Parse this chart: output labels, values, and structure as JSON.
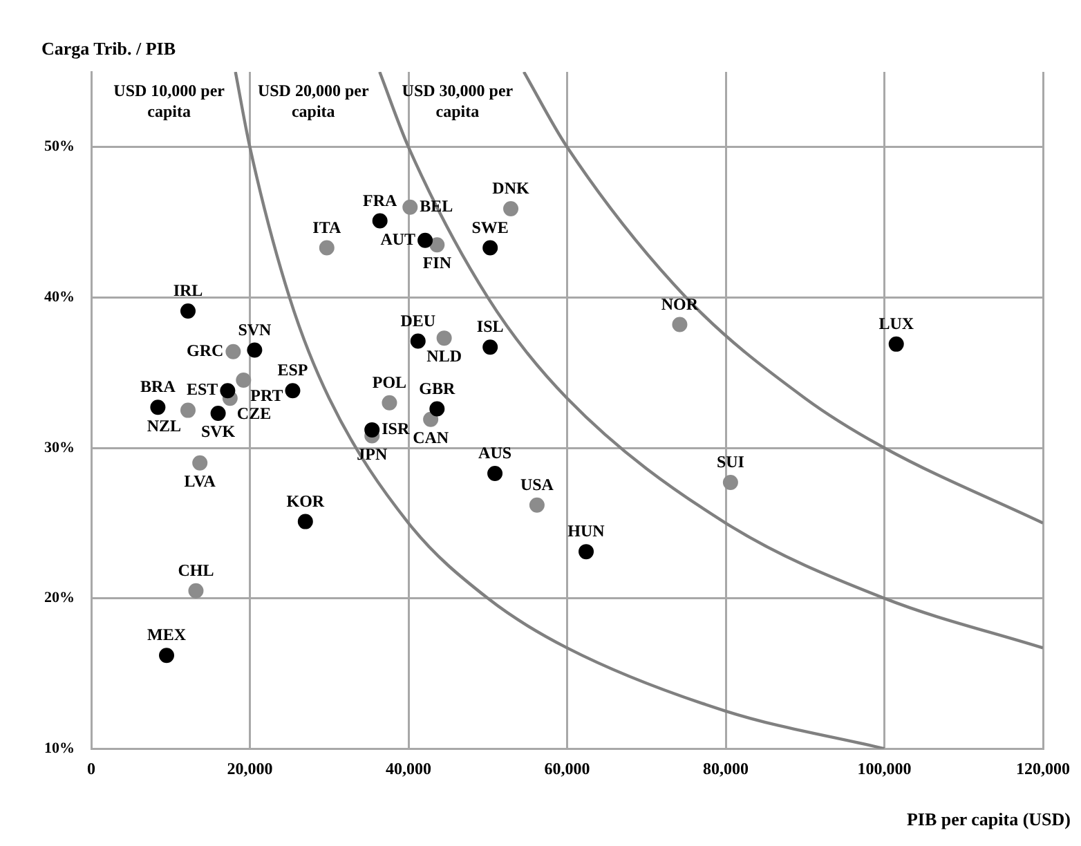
{
  "chart_data": {
    "type": "scatter",
    "ylabel": "Carga Trib. / PIB",
    "xlabel": "PIB per capita (USD)",
    "xlim": [
      0,
      120000
    ],
    "ylim": [
      10,
      55
    ],
    "xticks": [
      0,
      {
        "value": 20000,
        "label": "20,000"
      },
      {
        "value": 40000,
        "label": "40,000"
      },
      {
        "value": 60000,
        "label": "60,000"
      },
      {
        "value": 80000,
        "label": "80,000"
      },
      {
        "value": 100000,
        "label": "100,000"
      },
      {
        "value": 120000,
        "label": "120,000"
      }
    ],
    "yticks": [
      {
        "value": 10,
        "label": "10%"
      },
      {
        "value": 20,
        "label": "20%"
      },
      {
        "value": 30,
        "label": "30%"
      },
      {
        "value": 40,
        "label": "40%"
      },
      {
        "value": 50,
        "label": "50%"
      }
    ],
    "grid": true,
    "legend": false,
    "marker": "circle",
    "series": [
      {
        "color": "#000000",
        "x": [
          36400,
          42100,
          50300,
          12200,
          20600,
          41200,
          50300,
          25400,
          17200,
          8400,
          16000,
          43600,
          35400,
          27000,
          50900,
          62400,
          9500,
          101500
        ],
        "values": [
          45.1,
          43.8,
          43.3,
          39.1,
          36.5,
          37.1,
          36.7,
          33.8,
          33.8,
          32.7,
          32.3,
          32.6,
          31.2,
          25.1,
          28.3,
          23.1,
          16.2,
          36.9
        ],
        "value_labels": [
          "FRA",
          "AUT",
          "SWE",
          "IRL",
          "SVN",
          "DEU",
          "ISL",
          "ESP",
          "EST",
          "BRA",
          "SVK",
          "GBR",
          "ISR",
          "KOR",
          "AUS",
          "HUN",
          "MEX",
          "LUX"
        ]
      },
      {
        "color": "#8c8c8c",
        "x": [
          40200,
          43600,
          52900,
          29700,
          44500,
          74200,
          17900,
          19200,
          17500,
          12200,
          37600,
          42800,
          35400,
          13700,
          56200,
          80600,
          13200
        ],
        "values": [
          46.0,
          43.5,
          45.9,
          43.3,
          37.3,
          38.2,
          36.4,
          34.5,
          33.3,
          32.5,
          33.0,
          31.9,
          30.8,
          29.0,
          26.2,
          27.7,
          20.5
        ],
        "value_labels": [
          "BEL",
          "FIN",
          "DNK",
          "ITA",
          "NLD",
          "NOR",
          "GRC",
          "PRT",
          "CZE",
          "NZL",
          "POL",
          "CAN",
          "JPN",
          "LVA",
          "USA",
          "SUI",
          "CHL"
        ]
      },
      {
        "type": "line",
        "name": "USD 10,000 per capita",
        "color": "#808080",
        "line_style": "solid",
        "marker": "none",
        "x": [
          18182,
          20000,
          25000,
          30000,
          40000,
          50000,
          60000,
          80000,
          100000
        ],
        "values": [
          55,
          50,
          40,
          33.3,
          25,
          20,
          16.7,
          12.5,
          10
        ]
      },
      {
        "type": "line",
        "name": "USD 20,000 per capita",
        "color": "#808080",
        "line_style": "solid",
        "marker": "none",
        "x": [
          36364,
          40000,
          50000,
          60000,
          80000,
          100000,
          120000
        ],
        "values": [
          55,
          50,
          40,
          33.3,
          25,
          20,
          16.7
        ]
      },
      {
        "type": "line",
        "name": "USD 30,000 per capita",
        "color": "#808080",
        "line_style": "solid",
        "marker": "none",
        "x": [
          54545,
          60000,
          75000,
          90000,
          100000,
          120000
        ],
        "values": [
          55,
          50,
          40,
          33.3,
          30,
          25
        ]
      }
    ]
  }
}
